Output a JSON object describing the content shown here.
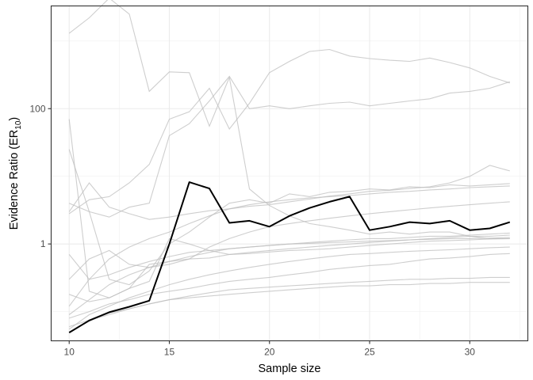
{
  "chart_data": {
    "type": "line",
    "title": "",
    "xlabel": "Sample size",
    "ylabel": {
      "main": "Evidence Ratio (ER",
      "sub": "10",
      "close": ")"
    },
    "y_scale": "log10",
    "xlim": [
      9.1,
      32.9
    ],
    "ylim": [
      0.037,
      3300
    ],
    "x_ticks": [
      10,
      15,
      20,
      25,
      30
    ],
    "x_tick_labels": [
      "10",
      "15",
      "20",
      "25",
      "30"
    ],
    "y_ticks": [
      1,
      100
    ],
    "y_tick_labels": [
      "1",
      "100"
    ],
    "grid": true,
    "legend": "none",
    "x": [
      10,
      11,
      12,
      13,
      14,
      15,
      16,
      17,
      18,
      19,
      20,
      21,
      22,
      23,
      24,
      25,
      26,
      27,
      28,
      29,
      30,
      31,
      32
    ],
    "highlight_series": {
      "color": "#000000",
      "values": [
        0.049,
        0.074,
        0.098,
        0.118,
        0.145,
        1.0,
        8.2,
        6.6,
        2.05,
        2.2,
        1.8,
        2.6,
        3.4,
        4.2,
        5.0,
        1.6,
        1.8,
        2.1,
        2.0,
        2.2,
        1.6,
        1.7,
        2.1
      ]
    },
    "background_series_color": "#bdbdbd",
    "background_series": [
      {
        "values": [
          1300,
          2200,
          4300,
          2500,
          180,
          350,
          340,
          55,
          290,
          6.5,
          3.7,
          2.6,
          2.0,
          1.8,
          1.6,
          1.4,
          1.5,
          1.4,
          1.5,
          1.5,
          1.3,
          1.2,
          1.2
        ]
      },
      {
        "values": [
          70,
          0.2,
          0.16,
          0.22,
          0.5,
          0.55,
          0.6,
          0.62,
          0.7,
          0.72,
          0.76,
          0.8,
          0.82,
          0.85,
          0.9,
          0.95,
          1.0,
          1.05,
          1.1,
          1.12,
          1.15,
          1.18,
          1.2
        ]
      },
      {
        "values": [
          25,
          3.0,
          0.3,
          0.25,
          0.4,
          1.0,
          1.5,
          2.5,
          4.0,
          4.5,
          4.0,
          5.5,
          5.0,
          5.8,
          6.0,
          6.5,
          6.3,
          7.0,
          6.8,
          7.5,
          7.2,
          7.5,
          7.8
        ]
      },
      {
        "values": [
          0.7,
          0.3,
          0.35,
          0.45,
          0.55,
          0.65,
          0.75,
          0.8,
          0.85,
          0.9,
          0.95,
          1.0,
          1.05,
          1.1,
          1.15,
          1.2,
          1.2,
          1.25,
          1.3,
          1.3,
          1.35,
          1.4,
          1.45
        ]
      },
      {
        "values": [
          3.0,
          8.0,
          3.5,
          2.8,
          2.3,
          2.5,
          2.8,
          3.1,
          3.3,
          3.6,
          3.8,
          4.2,
          4.6,
          5.1,
          5.5,
          6.0,
          6.2,
          6.6,
          7.0,
          8.0,
          10.0,
          14.5,
          12.0
        ]
      },
      {
        "values": [
          0.18,
          0.14,
          0.16,
          0.22,
          0.28,
          1.2,
          1.0,
          0.8,
          0.7,
          0.75,
          0.8,
          0.85,
          0.9,
          0.95,
          1.0,
          1.05,
          1.1,
          1.15,
          1.2,
          1.25,
          1.3,
          1.3,
          1.35
        ]
      },
      {
        "values": [
          0.055,
          0.09,
          0.12,
          0.16,
          0.2,
          0.25,
          0.3,
          0.35,
          0.4,
          0.45,
          0.5,
          0.55,
          0.6,
          0.65,
          0.7,
          0.72,
          0.75,
          0.78,
          0.8,
          0.82,
          0.85,
          0.88,
          0.9
        ]
      },
      {
        "values": [
          0.08,
          0.1,
          0.13,
          0.15,
          0.18,
          0.2,
          0.22,
          0.25,
          0.28,
          0.3,
          0.32,
          0.35,
          0.38,
          0.42,
          0.45,
          0.48,
          0.5,
          0.55,
          0.6,
          0.62,
          0.65,
          0.7,
          0.72
        ]
      },
      {
        "values": [
          0.06,
          0.075,
          0.09,
          0.11,
          0.13,
          0.15,
          0.17,
          0.19,
          0.21,
          0.22,
          0.23,
          0.24,
          0.25,
          0.26,
          0.27,
          0.28,
          0.29,
          0.3,
          0.3,
          0.31,
          0.31,
          0.32,
          0.32
        ]
      },
      {
        "values": [
          0.05,
          0.072,
          0.095,
          0.11,
          0.13,
          0.15,
          0.16,
          0.17,
          0.18,
          0.19,
          0.2,
          0.21,
          0.22,
          0.23,
          0.24,
          0.24,
          0.25,
          0.25,
          0.26,
          0.26,
          0.27,
          0.27,
          0.27
        ]
      },
      {
        "values": [
          0.12,
          0.3,
          0.6,
          0.9,
          1.2,
          1.5,
          2.0,
          2.6,
          3.3,
          3.8,
          4.2,
          4.5,
          4.8,
          5.0,
          5.2,
          5.5,
          5.8,
          6.0,
          6.3,
          6.5,
          6.8,
          7.0,
          7.2
        ]
      },
      {
        "values": [
          0.09,
          0.15,
          0.25,
          0.35,
          0.45,
          0.55,
          0.65,
          0.75,
          0.85,
          0.9,
          0.95,
          1.0,
          1.02,
          1.05,
          1.07,
          1.1,
          1.12,
          1.15,
          1.17,
          1.2,
          1.2,
          1.22,
          1.25
        ]
      },
      {
        "values": [
          2.8,
          4.5,
          5.0,
          8.0,
          15.0,
          70.0,
          90.0,
          200.0,
          50.0,
          120.0,
          340.0,
          500.0,
          700.0,
          750.0,
          600.0,
          550.0,
          520.0,
          500.0,
          560.0,
          480.0,
          400.0,
          300.0,
          240.0
        ]
      },
      {
        "values": [
          4.0,
          3.0,
          2.5,
          3.5,
          4.0,
          40.0,
          60.0,
          130.0,
          300.0,
          100.0,
          110.0,
          100.0,
          110.0,
          120.0,
          125.0,
          110.0,
          120.0,
          130.0,
          140.0,
          170.0,
          180.0,
          200.0,
          250.0
        ]
      },
      {
        "values": [
          0.3,
          0.6,
          0.8,
          0.5,
          0.45,
          0.5,
          0.6,
          0.9,
          1.2,
          1.5,
          1.8,
          2.0,
          2.2,
          2.4,
          2.6,
          2.8,
          3.0,
          3.2,
          3.4,
          3.6,
          3.8,
          4.0,
          4.2
        ]
      }
    ]
  }
}
